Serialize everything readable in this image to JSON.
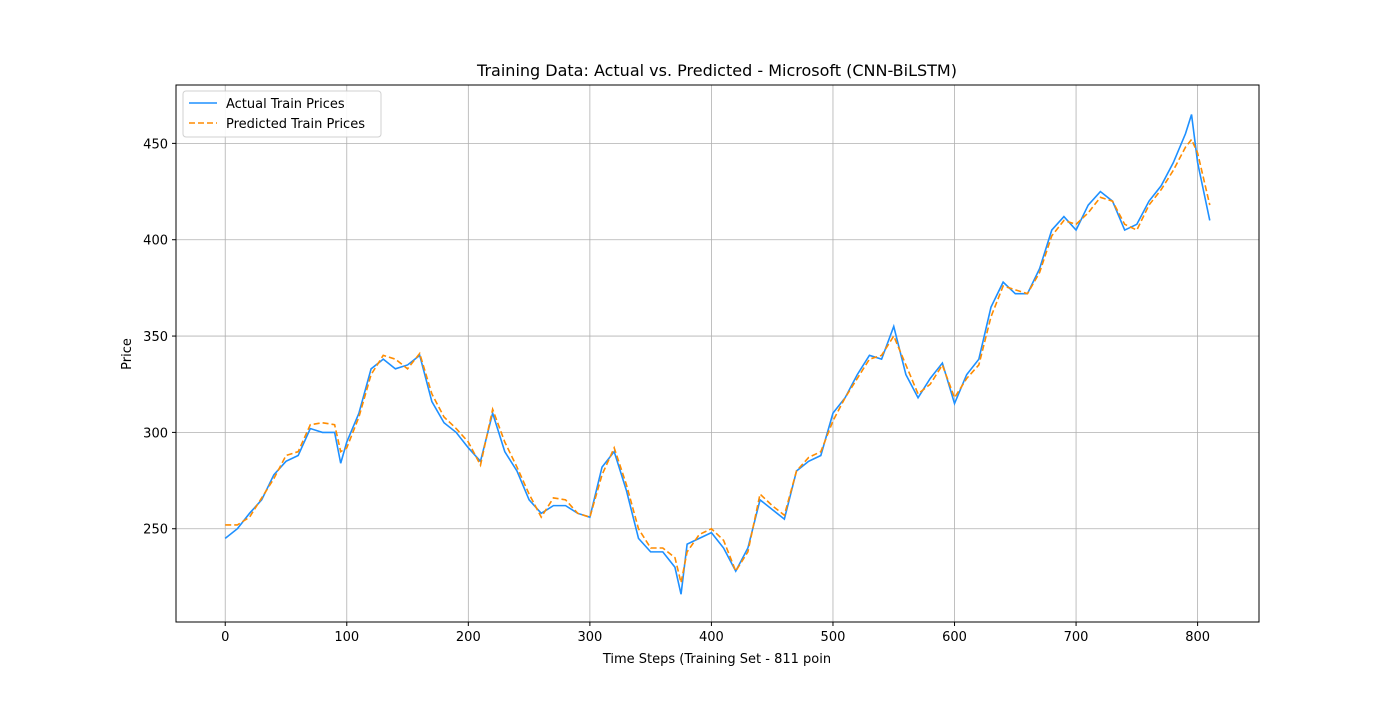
{
  "chart_data": {
    "type": "line",
    "title": "Training Data: Actual vs. Predicted - Microsoft (CNN-BiLSTM)",
    "x_label": "Time Steps (Training Set - 811 poin",
    "y_label": "Price",
    "x": [
      0,
      10,
      20,
      30,
      40,
      50,
      60,
      70,
      80,
      90,
      95,
      100,
      110,
      120,
      130,
      140,
      150,
      160,
      170,
      180,
      190,
      200,
      210,
      220,
      230,
      240,
      250,
      260,
      270,
      280,
      290,
      300,
      310,
      320,
      330,
      340,
      350,
      360,
      370,
      375,
      380,
      390,
      400,
      410,
      420,
      430,
      440,
      450,
      460,
      470,
      480,
      490,
      500,
      510,
      520,
      530,
      540,
      550,
      560,
      570,
      580,
      590,
      600,
      610,
      620,
      630,
      640,
      650,
      660,
      670,
      680,
      690,
      700,
      710,
      720,
      730,
      740,
      750,
      760,
      770,
      780,
      790,
      795,
      800,
      810
    ],
    "series": [
      {
        "name": "Actual Train Prices",
        "color": "#1e90ff",
        "dash": false,
        "values": [
          245,
          250,
          258,
          265,
          278,
          285,
          288,
          302,
          300,
          300,
          284,
          295,
          310,
          333,
          338,
          333,
          335,
          340,
          316,
          305,
          300,
          292,
          285,
          310,
          290,
          280,
          265,
          258,
          262,
          262,
          258,
          256,
          282,
          290,
          270,
          245,
          238,
          238,
          230,
          216,
          242,
          245,
          248,
          240,
          228,
          240,
          265,
          260,
          255,
          280,
          285,
          288,
          310,
          318,
          330,
          340,
          338,
          355,
          330,
          318,
          328,
          336,
          315,
          330,
          338,
          365,
          378,
          372,
          372,
          385,
          405,
          412,
          405,
          418,
          425,
          420,
          405,
          408,
          420,
          428,
          440,
          455,
          465,
          440,
          410
        ]
      },
      {
        "name": "Predicted Train Prices",
        "color": "#ff8c00",
        "dash": true,
        "values": [
          252,
          252,
          256,
          266,
          276,
          288,
          290,
          304,
          305,
          304,
          290,
          292,
          308,
          330,
          340,
          338,
          333,
          341,
          320,
          308,
          302,
          295,
          283,
          312,
          295,
          282,
          268,
          256,
          266,
          265,
          258,
          256,
          278,
          292,
          273,
          250,
          240,
          240,
          235,
          222,
          238,
          247,
          250,
          244,
          228,
          238,
          268,
          262,
          257,
          280,
          287,
          290,
          306,
          318,
          328,
          338,
          340,
          350,
          335,
          320,
          325,
          335,
          318,
          328,
          335,
          360,
          376,
          374,
          372,
          383,
          402,
          410,
          408,
          414,
          422,
          420,
          408,
          405,
          418,
          426,
          436,
          448,
          452,
          445,
          418
        ]
      }
    ],
    "xlim": [
      -40.5,
      850.5
    ],
    "ylim": [
      201.6,
      480.3
    ],
    "xticks": [
      0,
      100,
      200,
      300,
      400,
      500,
      600,
      700,
      800
    ],
    "yticks": [
      250,
      300,
      350,
      400,
      450
    ],
    "grid": true,
    "legend": "upper-left"
  }
}
